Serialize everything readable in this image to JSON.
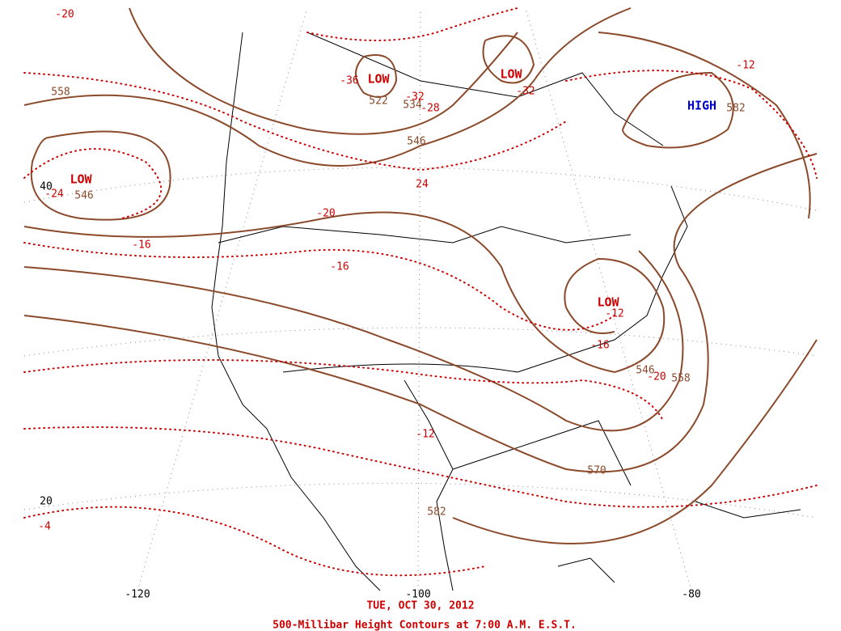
{
  "caption": {
    "date": "TUE, OCT 30, 2012",
    "title": "500-Millibar Height Contours at 7:00 A.M. E.S.T."
  },
  "longitude_labels": [
    "-120",
    "-100",
    "-80"
  ],
  "latitude_labels": [
    "40",
    "20"
  ],
  "pressure_centers": [
    "LOW",
    "LOW",
    "LOW",
    "LOW",
    "HIGH"
  ],
  "height_labels": [
    "558",
    "546",
    "522",
    "534",
    "546",
    "546",
    "558",
    "570",
    "582",
    "582"
  ],
  "temperature_labels": [
    "-20",
    "-36",
    "-32",
    "-32",
    "-28",
    "-24",
    "24",
    "-20",
    "-16",
    "-16",
    "-12",
    "-16",
    "-20",
    "-12",
    "-12",
    "-4"
  ]
}
